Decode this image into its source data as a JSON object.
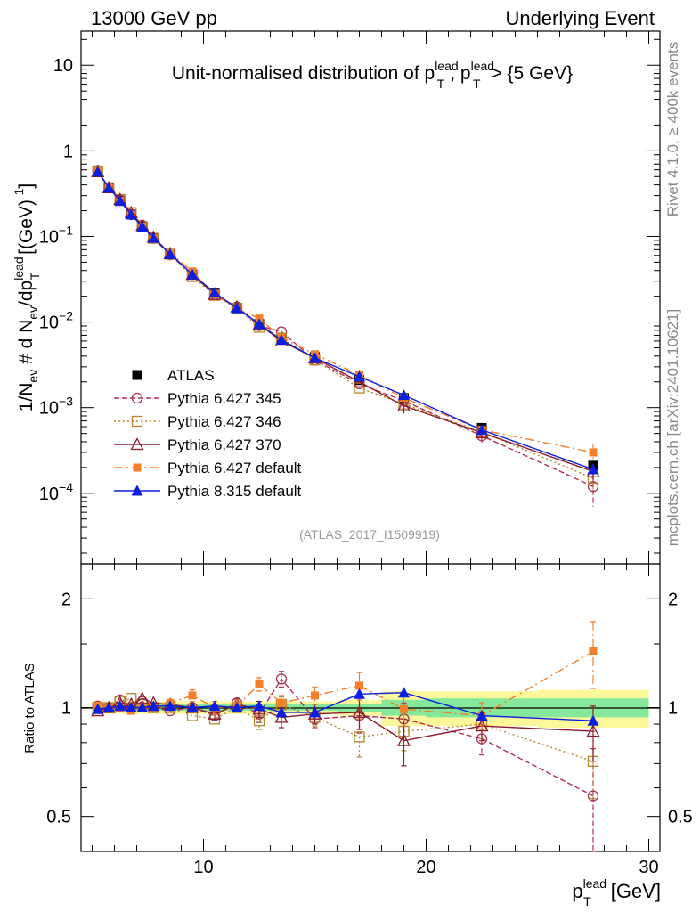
{
  "header": {
    "left": "13000 GeV pp",
    "right": "Underlying Event"
  },
  "side_labels": {
    "rivet": "Rivet 4.1.0, ≥ 400k events",
    "mcplots": "mcplots.cern.ch [arXiv:2401.10621]"
  },
  "watermark": "(ATLAS_2017_I1509919)",
  "chart_data": [
    {
      "type": "line",
      "panel": "main",
      "title": {
        "main": "Unit-normalised distribution of p",
        "sup": "lead",
        "sub": "T",
        "sep": ", p",
        "suffix": " > {5 GeV}"
      },
      "ylabel": {
        "a": "1/N",
        "a_sub": "ev",
        "b": " # d N",
        "b_sub": "ev",
        "c": "/dp",
        "c_sup": "lead",
        "c_sub": "T",
        "d": " [(GeV)",
        "d_sup": "-1",
        "e": "]"
      },
      "yscale": "log",
      "xlim": [
        4.5,
        30.5
      ],
      "ylim": [
        1.5e-05,
        25
      ],
      "yticks": [
        {
          "value": 10,
          "label": "10"
        },
        {
          "value": 1,
          "label": "1"
        },
        {
          "value": 0.1,
          "mant": "10",
          "exp": "−1"
        },
        {
          "value": 0.01,
          "mant": "10",
          "exp": "−2"
        },
        {
          "value": 0.001,
          "mant": "10",
          "exp": "−3"
        },
        {
          "value": 0.0001,
          "mant": "10",
          "exp": "−4"
        }
      ],
      "x": [
        5.25,
        5.75,
        6.25,
        6.75,
        7.25,
        7.75,
        8.5,
        9.5,
        10.5,
        11.5,
        12.5,
        13.5,
        15,
        17,
        19,
        22.5,
        27.5
      ],
      "series": [
        {
          "name": "ATLAS",
          "style": "data",
          "color": "#000000",
          "values": [
            0.58,
            0.37,
            0.26,
            0.18,
            0.13,
            0.095,
            0.062,
            0.036,
            0.022,
            0.0145,
            0.0095,
            0.0064,
            0.0039,
            0.0021,
            0.0013,
            0.00058,
            0.00021
          ]
        },
        {
          "name": "Pythia 6.427 345",
          "style": "open-circle",
          "color": "#b03050",
          "dash": "6,3",
          "values": [
            0.59,
            0.37,
            0.27,
            0.18,
            0.135,
            0.095,
            0.061,
            0.036,
            0.021,
            0.015,
            0.0091,
            0.0077,
            0.0036,
            0.0019,
            0.0012,
            0.00047,
            0.00012
          ],
          "errs": [
            0,
            0,
            0,
            0,
            0,
            0,
            0,
            0,
            0,
            0,
            0,
            0,
            0,
            0,
            0.0002,
            8e-05,
            5e-05
          ]
        },
        {
          "name": "Pythia 6.427 346",
          "style": "open-square",
          "color": "#b5852a",
          "dash": "2,3",
          "values": [
            0.58,
            0.37,
            0.27,
            0.19,
            0.13,
            0.095,
            0.062,
            0.034,
            0.0205,
            0.0145,
            0.0087,
            0.0065,
            0.0036,
            0.0017,
            0.0011,
            0.00052,
            0.00015
          ],
          "errs": [
            0,
            0,
            0,
            0,
            0,
            0,
            0,
            0,
            0,
            0,
            0,
            0,
            0,
            0,
            0,
            0,
            4e-05
          ]
        },
        {
          "name": "Pythia 6.427 370",
          "style": "open-triangle",
          "color": "#8e1b2c",
          "dash": "",
          "values": [
            0.57,
            0.37,
            0.27,
            0.19,
            0.135,
            0.098,
            0.063,
            0.036,
            0.021,
            0.015,
            0.0094,
            0.006,
            0.0038,
            0.002,
            0.00105,
            0.00051,
            0.00018
          ],
          "errs": [
            0,
            0,
            0,
            0,
            0,
            0,
            0,
            0,
            0,
            0,
            0,
            0,
            0,
            0,
            0.0002,
            6e-05,
            4e-05
          ]
        },
        {
          "name": "Pythia 6.427 default",
          "style": "filled-square",
          "color": "#f47f2a",
          "dash": "10,4,2,4",
          "values": [
            0.59,
            0.37,
            0.26,
            0.18,
            0.13,
            0.095,
            0.064,
            0.039,
            0.021,
            0.0145,
            0.011,
            0.0066,
            0.0042,
            0.0024,
            0.0013,
            0.00055,
            0.0003
          ],
          "errs": [
            0,
            0,
            0,
            0,
            0,
            0,
            0,
            0,
            0,
            0,
            0,
            0,
            0,
            0.0004,
            0,
            0,
            7e-05
          ]
        },
        {
          "name": "Pythia 8.315 default",
          "style": "filled-triangle",
          "color": "#0a1fe0",
          "dash": "",
          "values": [
            0.57,
            0.37,
            0.26,
            0.18,
            0.13,
            0.096,
            0.062,
            0.036,
            0.022,
            0.0145,
            0.0095,
            0.0062,
            0.0038,
            0.0023,
            0.0014,
            0.00055,
            0.00019
          ],
          "errs": [
            0,
            0,
            0,
            0,
            0,
            0,
            0,
            0,
            0,
            0,
            0,
            0,
            0,
            0,
            0,
            0,
            0
          ]
        }
      ],
      "legend": {
        "placement": "middle-left"
      }
    },
    {
      "type": "line",
      "panel": "ratio",
      "ylabel": "Ratio to ATLAS",
      "yscale": "log",
      "xlim": [
        4.5,
        30.5
      ],
      "ylim": [
        0.4,
        2.5
      ],
      "yticks": [
        {
          "value": 2,
          "label": "2"
        },
        {
          "value": 1,
          "label": "1"
        },
        {
          "value": 0.5,
          "label": "0.5"
        }
      ],
      "xticks": [
        {
          "value": 10,
          "label": "10"
        },
        {
          "value": 20,
          "label": "20"
        },
        {
          "value": 30,
          "label": "30"
        }
      ],
      "xlabel": {
        "main": "p",
        "sup": "lead",
        "sub": "T",
        "unit": " [GeV]"
      },
      "uncertainty_bands": {
        "edges": [
          5,
          6,
          7,
          8,
          9,
          10,
          11,
          12,
          13,
          14,
          16,
          18,
          20,
          25,
          30
        ],
        "stat": [
          0.02,
          0.02,
          0.02,
          0.02,
          0.02,
          0.02,
          0.02,
          0.02,
          0.02,
          0.02,
          0.025,
          0.05,
          0.06,
          0.06
        ],
        "total": [
          0.04,
          0.04,
          0.04,
          0.04,
          0.04,
          0.04,
          0.04,
          0.04,
          0.04,
          0.04,
          0.05,
          0.11,
          0.11,
          0.12
        ],
        "stat_color": "#85e89a",
        "total_color": "#fbf79a"
      },
      "series": [
        {
          "name": "Pythia 6.427 345",
          "values": [
            1.01,
            1.0,
            1.05,
            1.0,
            1.04,
            1.0,
            0.98,
            1.0,
            0.95,
            1.03,
            0.96,
            1.2,
            0.93,
            0.95,
            0.93,
            0.82,
            0.57
          ],
          "errs": [
            0,
            0,
            0,
            0,
            0,
            0,
            0,
            0,
            0,
            0,
            0.05,
            0.06,
            0.05,
            0.1,
            0.1,
            0.08,
            0.2
          ]
        },
        {
          "name": "Pythia 6.427 346",
          "values": [
            1.0,
            1.0,
            1.04,
            1.06,
            1.02,
            1.0,
            1.0,
            0.95,
            0.93,
            1.0,
            0.92,
            1.02,
            0.94,
            0.83,
            0.86,
            0.9,
            0.71
          ],
          "errs": [
            0,
            0,
            0,
            0,
            0,
            0,
            0,
            0,
            0,
            0,
            0.05,
            0.05,
            0.05,
            0.1,
            0.1,
            0.08,
            0.15
          ]
        },
        {
          "name": "Pythia 6.427 370",
          "values": [
            0.98,
            1.0,
            1.03,
            1.02,
            1.06,
            1.03,
            1.02,
            1.0,
            0.96,
            1.02,
            0.99,
            0.94,
            0.96,
            0.97,
            0.81,
            0.89,
            0.86
          ],
          "errs": [
            0,
            0,
            0,
            0,
            0,
            0,
            0,
            0,
            0.04,
            0.04,
            0.05,
            0.06,
            0.06,
            0.1,
            0.12,
            0.08,
            0.15
          ]
        },
        {
          "name": "Pythia 6.427 default",
          "values": [
            1.01,
            1.0,
            1.0,
            0.98,
            1.0,
            1.0,
            1.03,
            1.08,
            1.0,
            1.01,
            1.16,
            1.03,
            1.08,
            1.15,
            0.99,
            0.95,
            1.43
          ],
          "errs": [
            0,
            0,
            0,
            0,
            0,
            0,
            0,
            0.04,
            0.04,
            0.04,
            0.05,
            0.05,
            0.06,
            0.1,
            0.1,
            0.08,
            0.3
          ]
        },
        {
          "name": "Pythia 8.315 default",
          "values": [
            0.99,
            1.0,
            1.01,
            1.0,
            1.0,
            1.01,
            1.01,
            1.0,
            1.01,
            1.0,
            1.01,
            0.97,
            0.97,
            1.09,
            1.1,
            0.95,
            0.92
          ],
          "errs": [
            0,
            0,
            0,
            0,
            0,
            0,
            0,
            0,
            0,
            0,
            0,
            0,
            0,
            0,
            0,
            0,
            0
          ]
        }
      ]
    }
  ]
}
